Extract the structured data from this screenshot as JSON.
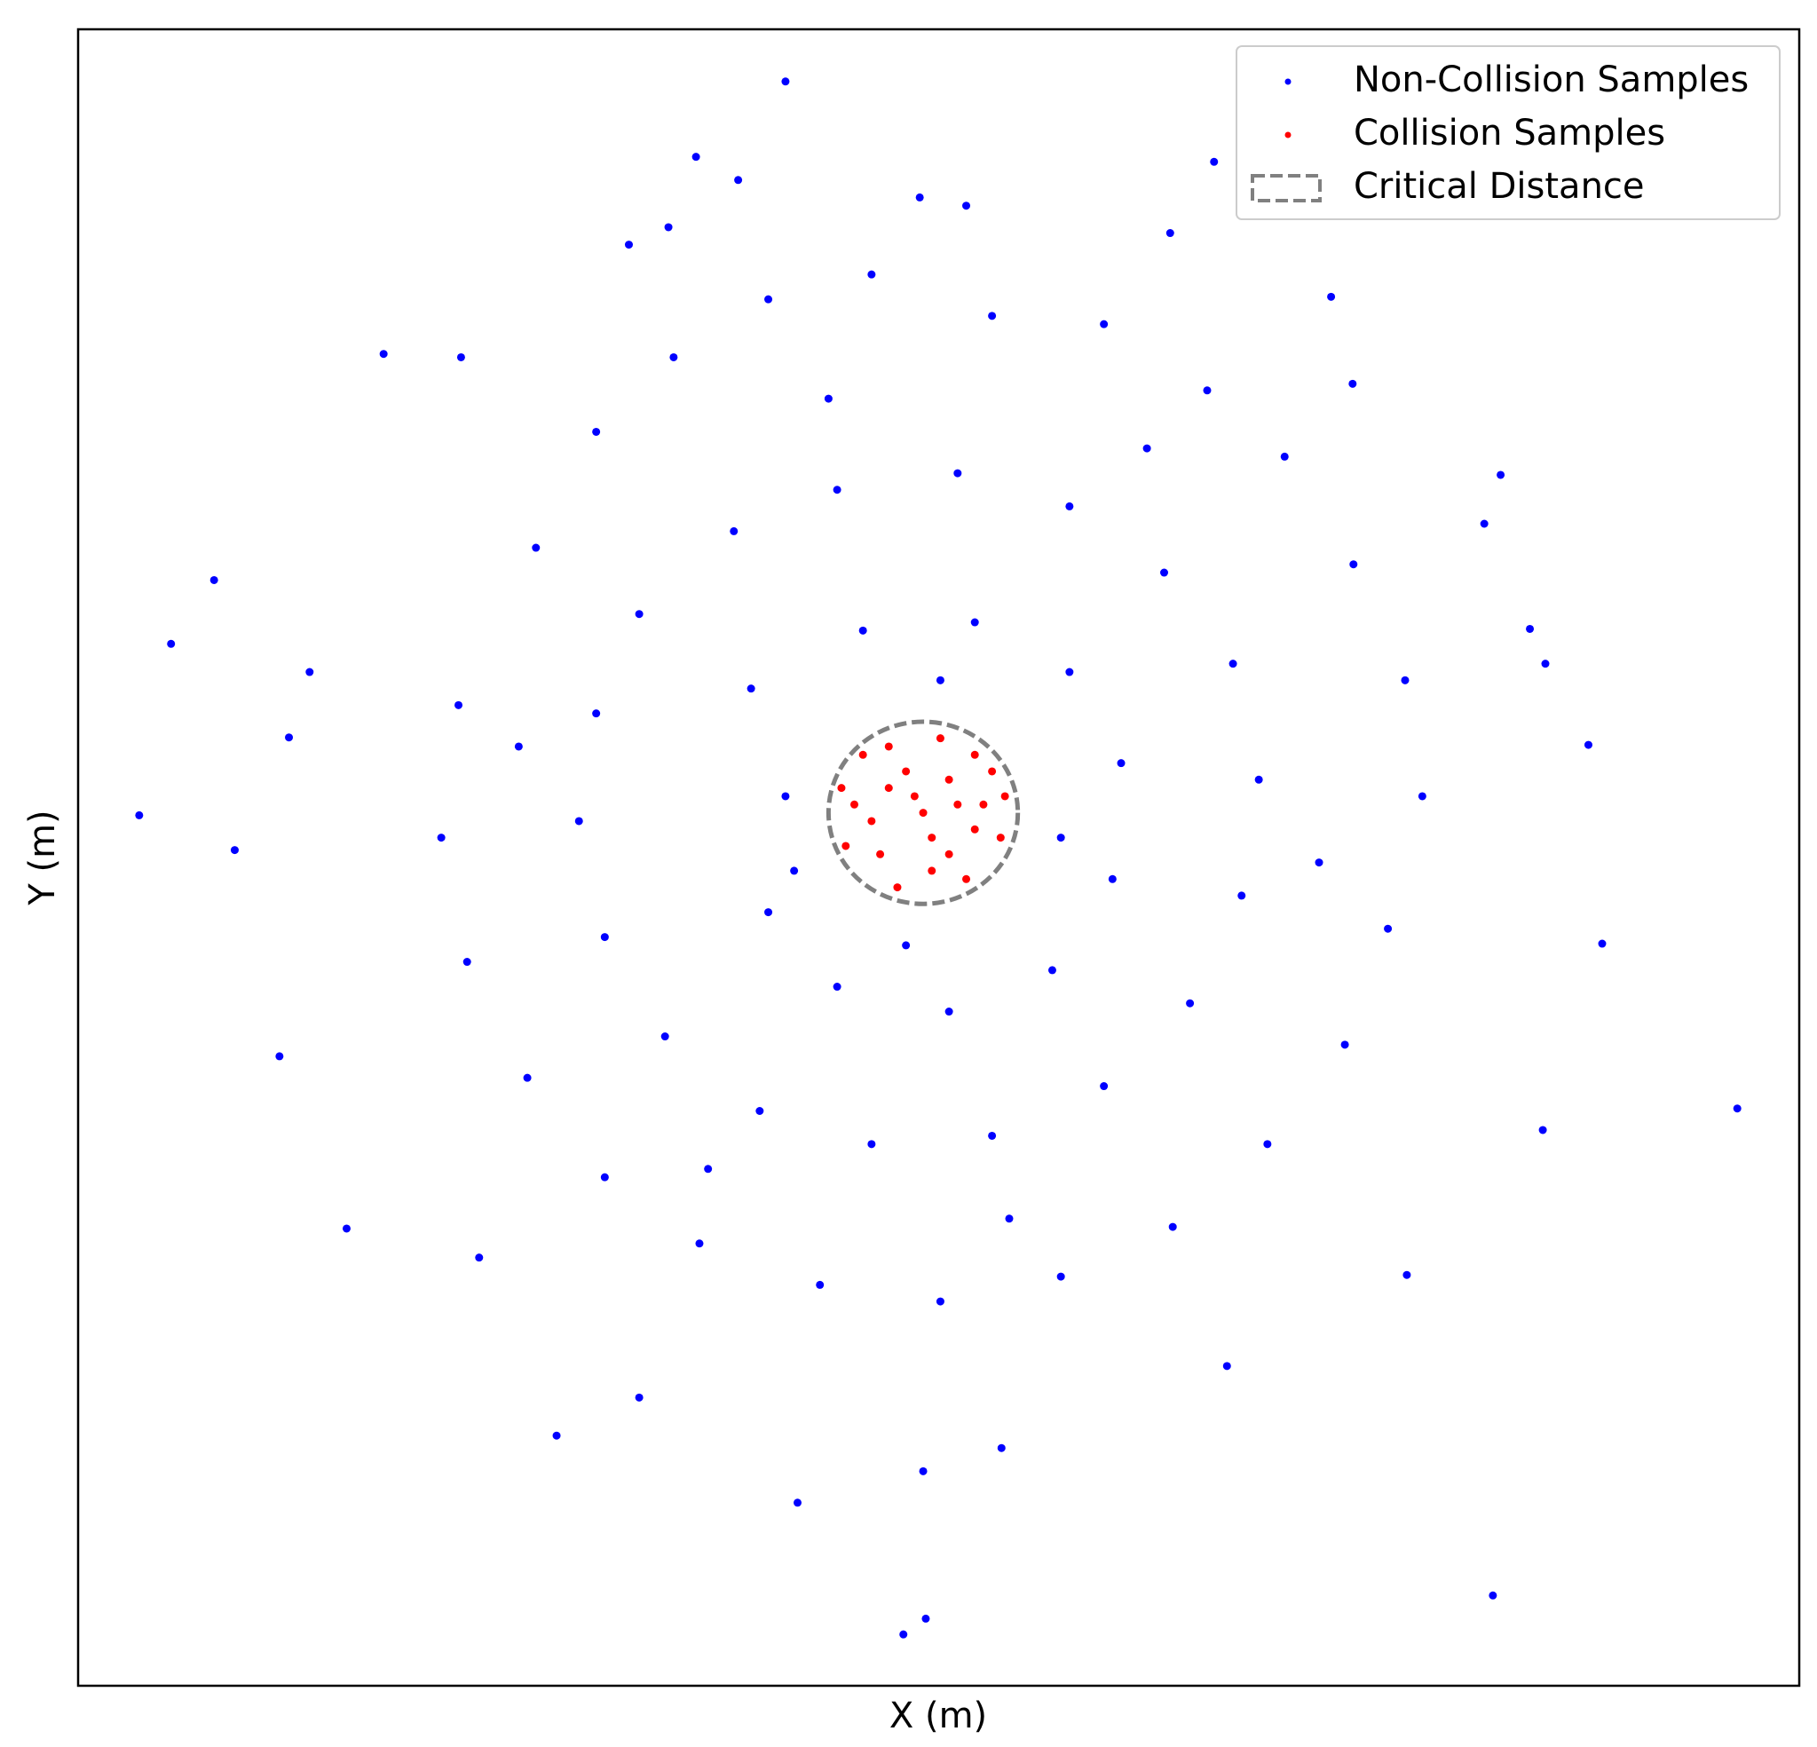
{
  "chart_data": {
    "type": "scatter",
    "xlabel": "X (m)",
    "ylabel": "Y (m)",
    "xlim": [
      -9.82,
      10.18
    ],
    "ylim": [
      -10.54,
      9.46
    ],
    "legend": "upper right",
    "series": [
      {
        "name": "Non-Collision Samples",
        "color": "#0000ff",
        "x": [
          -1.6,
          -2.64,
          -2.15,
          3.38,
          0.5,
          -0.04,
          2.87,
          4.74,
          -6.27,
          -5.37,
          -8.24,
          -8.74,
          -9.11,
          -8.0,
          -7.48,
          -6.7,
          6.71,
          7.73,
          7.89,
          9.46,
          7.2,
          6.62,
          -0.23,
          0.03,
          -1.46,
          0,
          0.91,
          -4.26,
          -3.3,
          3.53,
          5.62,
          -5.16,
          -7.13,
          -7.37,
          7.23,
          7.05,
          6.52,
          4.99,
          -2.96,
          -3.42,
          -4.5,
          -3.8,
          -2.9,
          -1.8,
          -0.6,
          0.8,
          2.1,
          3.3,
          4.2,
          5.0,
          5.6,
          5.8,
          5.4,
          4.9,
          4.0,
          2.9,
          1.6,
          0.2,
          -1.2,
          -2.6,
          -3.7,
          -4.6,
          -5.3,
          -5.6,
          -5.4,
          -3.3,
          -2.2,
          -1.0,
          0.4,
          1.7,
          2.8,
          3.6,
          3.9,
          3.7,
          3.1,
          2.1,
          0.8,
          -0.6,
          -1.9,
          -3.0,
          -3.7,
          -4.0,
          -3.8,
          -2.0,
          -1.6,
          -1.8,
          -1.0,
          0.3,
          1.5,
          2.2,
          2.3,
          1.7,
          0.6,
          -0.7,
          -1.5,
          1.6,
          0.2,
          -0.2,
          2.6,
          -2.5,
          4.6,
          -4.7,
          1.0,
          -1.1
        ],
        "y": [
          8.83,
          7.92,
          7.64,
          7.86,
          7.33,
          7.43,
          7.0,
          6.23,
          5.54,
          5.5,
          2.81,
          2.04,
          -0.03,
          -0.45,
          -2.94,
          -5.02,
          4.08,
          0.82,
          -1.58,
          -3.57,
          -3.83,
          -9.45,
          -9.92,
          -9.73,
          -8.33,
          -7.95,
          -7.67,
          -7.52,
          -7.06,
          -6.68,
          -5.58,
          -5.37,
          1.7,
          0.91,
          1.8,
          2.22,
          3.49,
          5.18,
          7.07,
          6.86,
          3.2,
          4.6,
          5.5,
          6.2,
          6.5,
          6.0,
          5.9,
          5.1,
          4.3,
          3.0,
          1.6,
          0.2,
          -1.4,
          -2.8,
          -4.0,
          -5.0,
          -5.6,
          -5.9,
          -5.7,
          -5.2,
          -4.4,
          -3.2,
          -1.8,
          -0.3,
          1.3,
          2.4,
          3.4,
          3.9,
          4.1,
          3.7,
          2.9,
          1.8,
          0.4,
          -1.0,
          -2.3,
          -3.3,
          -3.9,
          -4.0,
          -3.6,
          -2.7,
          -1.5,
          -0.1,
          1.2,
          1.5,
          0.2,
          -1.2,
          -2.1,
          -2.4,
          -1.9,
          -0.8,
          0.6,
          1.7,
          2.3,
          2.2,
          -0.7,
          -0.3,
          1.6,
          -1.6,
          4.4,
          -4.3,
          -0.6,
          0.8,
          -4.9,
          5.0
        ]
      },
      {
        "name": "Collision Samples",
        "color": "#ff0000",
        "x": [
          0,
          0.3,
          -0.4,
          0.6,
          -0.5,
          0.1,
          0.8,
          -0.8,
          0.2,
          -0.3,
          0.9,
          -0.7,
          0.5,
          -0.9,
          0.4,
          -0.2,
          0.7,
          -0.6,
          0.1,
          -0.1,
          0.95,
          -0.95,
          0.3,
          -0.4,
          0.6
        ],
        "y": [
          0,
          0.4,
          0.3,
          -0.2,
          -0.5,
          -0.7,
          0.5,
          0.1,
          0.9,
          -0.9,
          -0.3,
          0.7,
          -0.8,
          -0.4,
          0.1,
          0.5,
          0.1,
          -0.1,
          -0.3,
          0.2,
          0.2,
          0.3,
          -0.5,
          0.8,
          0.7
        ]
      }
    ],
    "critical_distance": {
      "name": "Critical Distance",
      "center": [
        0,
        0
      ],
      "radius": 1.1,
      "color": "#808080"
    }
  }
}
